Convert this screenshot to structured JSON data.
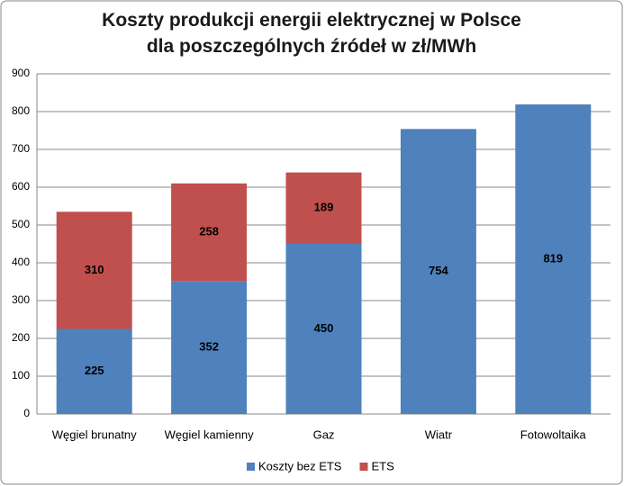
{
  "chart_data": {
    "type": "stacked_bar",
    "title": "Koszty produkcji energii elektrycznej w Polsce dla poszczególnych źródeł w zł/MWh",
    "categories": [
      "Węgiel brunatny",
      "Węgiel kamienny",
      "Gaz",
      "Wiatr",
      "Fotowoltaika"
    ],
    "series": [
      {
        "name": "Koszty bez ETS",
        "color": "#4f81bd",
        "values": [
          225,
          352,
          450,
          754,
          819
        ]
      },
      {
        "name": "ETS",
        "color": "#c0504d",
        "values": [
          310,
          258,
          189,
          null,
          null
        ]
      }
    ],
    "ylim": [
      0,
      900
    ],
    "yticks": [
      0,
      100,
      200,
      300,
      400,
      500,
      600,
      700,
      800,
      900
    ],
    "grid": true,
    "legend": "bottom"
  }
}
